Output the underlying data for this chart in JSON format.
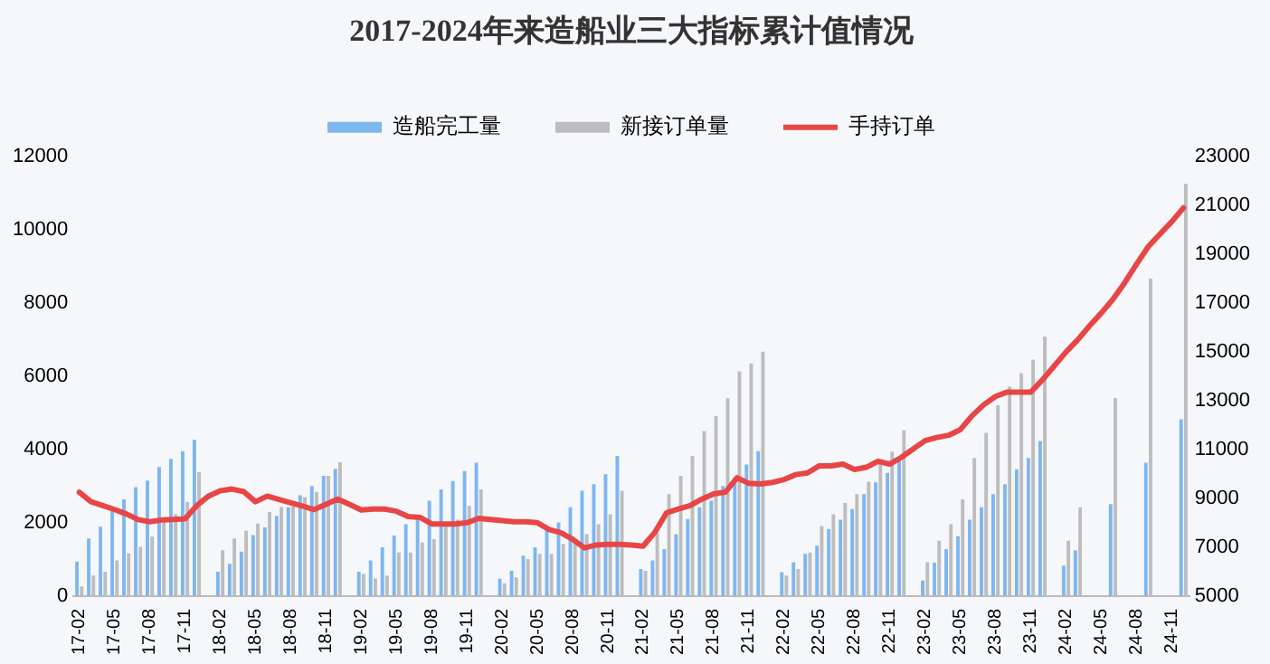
{
  "chart_data": {
    "type": "bar",
    "title": "2017-2024年来造船业三大指标累计值情况",
    "categories": [
      "17-02",
      null,
      null,
      "17-05",
      null,
      null,
      "17-08",
      null,
      null,
      "17-11",
      null,
      null,
      "18-02",
      null,
      null,
      "18-05",
      null,
      null,
      "18-08",
      null,
      null,
      "18-11",
      null,
      null,
      "19-02",
      null,
      null,
      "19-05",
      null,
      null,
      "19-08",
      null,
      null,
      "19-11",
      null,
      null,
      "20-02",
      null,
      null,
      "20-05",
      null,
      null,
      "20-08",
      null,
      null,
      "20-11",
      null,
      null,
      "21-02",
      null,
      null,
      "21-05",
      null,
      null,
      "21-08",
      null,
      null,
      "21-11",
      null,
      null,
      "22-02",
      null,
      null,
      "22-05",
      null,
      null,
      "22-08",
      null,
      null,
      "22-11",
      null,
      null,
      "23-02",
      null,
      null,
      "23-05",
      null,
      null,
      "23-08",
      null,
      null,
      "23-11",
      null,
      null,
      "24-02",
      null,
      null,
      "24-05",
      null,
      null,
      "24-08",
      null,
      null,
      "24-11",
      null
    ],
    "series": [
      {
        "name": "造船完工量",
        "color": "#7eb6f0",
        "values": [
          940,
          1570,
          1890,
          2340,
          2640,
          2970,
          3150,
          3520,
          3740,
          3950,
          4270,
          null,
          660,
          880,
          1210,
          1660,
          1870,
          2190,
          2420,
          2750,
          3000,
          3280,
          3470,
          null,
          660,
          970,
          1330,
          1650,
          1960,
          2080,
          2600,
          2910,
          3140,
          3410,
          3640,
          null,
          470,
          690,
          1100,
          1330,
          1830,
          2010,
          2420,
          2870,
          3050,
          3320,
          3820,
          null,
          740,
          970,
          1280,
          1690,
          2100,
          2420,
          2600,
          3000,
          3230,
          3590,
          3950,
          null,
          650,
          920,
          1150,
          1370,
          1830,
          2080,
          2370,
          2780,
          3100,
          3360,
          3680,
          null,
          420,
          910,
          1280,
          1630,
          2080,
          2420,
          2780,
          3050,
          3460,
          3770,
          4230,
          null,
          830,
          1240,
          null,
          null,
          2510,
          null,
          null,
          3640,
          null,
          null,
          4820
        ]
      },
      {
        "name": "新接订单量",
        "color": "#bdbdbd",
        "values": [
          260,
          560,
          660,
          970,
          1160,
          1340,
          1620,
          2020,
          2230,
          2570,
          3380,
          null,
          1250,
          1570,
          1780,
          1980,
          2290,
          2430,
          2450,
          2700,
          2840,
          3280,
          3650,
          null,
          600,
          480,
          560,
          1190,
          1190,
          1460,
          1550,
          1950,
          2080,
          2460,
          2910,
          null,
          350,
          510,
          1010,
          1150,
          1150,
          1420,
          1430,
          1690,
          1960,
          2230,
          2870,
          null,
          690,
          1720,
          2780,
          3280,
          3820,
          4500,
          4910,
          5400,
          6130,
          6350,
          6670,
          null,
          560,
          740,
          1190,
          1910,
          2230,
          2540,
          2780,
          3120,
          3650,
          3940,
          4520,
          null,
          920,
          1510,
          1960,
          2640,
          3770,
          4450,
          5210,
          5720,
          6080,
          6450,
          7080,
          null,
          1510,
          2420,
          null,
          null,
          5400,
          null,
          null,
          8660,
          null,
          null,
          11250
        ]
      },
      {
        "name": "手持订单",
        "type": "line",
        "axis": "y2",
        "color": "#e84646",
        "values": [
          9250,
          8860,
          8700,
          8540,
          8360,
          8130,
          8040,
          8110,
          8130,
          8160,
          8700,
          9090,
          9310,
          9380,
          9270,
          8860,
          9090,
          8950,
          8810,
          8680,
          8540,
          8750,
          8970,
          8750,
          8520,
          8560,
          8560,
          8470,
          8250,
          8220,
          7950,
          7950,
          7950,
          8000,
          8180,
          8130,
          8090,
          8040,
          8040,
          8000,
          7720,
          7590,
          7320,
          6970,
          7090,
          7110,
          7110,
          7090,
          7040,
          7610,
          8410,
          8560,
          8700,
          8970,
          9180,
          9250,
          9840,
          9610,
          9590,
          9650,
          9770,
          9970,
          10040,
          10330,
          10330,
          10400,
          10180,
          10270,
          10520,
          10400,
          10680,
          11020,
          11360,
          11490,
          11580,
          11810,
          12380,
          12830,
          13170,
          13350,
          13350,
          13350,
          13850,
          14420,
          14990,
          15490,
          16060,
          16580,
          17150,
          17830,
          18580,
          19300,
          19820,
          20320,
          20890
        ]
      }
    ],
    "ylim": [
      0,
      12000
    ],
    "yticks": [
      0,
      2000,
      4000,
      6000,
      8000,
      10000,
      12000
    ],
    "y2lim": [
      5000,
      23000
    ],
    "y2ticks": [
      5000,
      7000,
      9000,
      11000,
      13000,
      15000,
      17000,
      19000,
      21000,
      23000
    ],
    "grid": false,
    "legend": "top",
    "marker": "none",
    "line_style": "solid"
  }
}
